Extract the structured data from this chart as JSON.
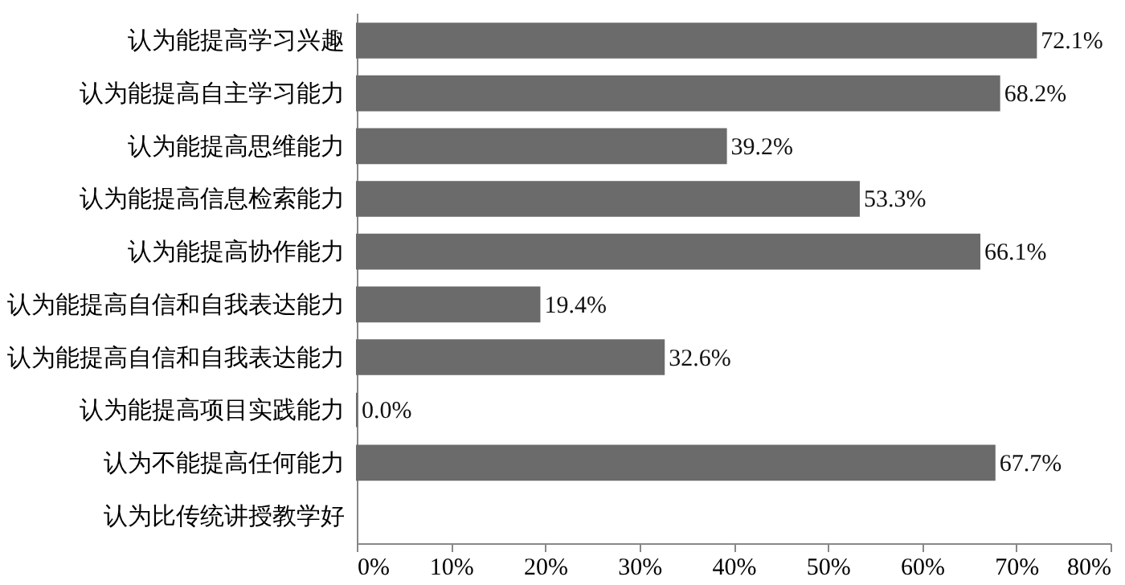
{
  "chart_data": {
    "type": "bar",
    "orientation": "horizontal",
    "categories": [
      "认为能提高学习兴趣",
      "认为能提高自主学习能力",
      "认为能提高思维能力",
      "认为能提高信息检索能力",
      "认为能提高协作能力",
      "认为能提高自信和自我表达能力",
      "认为能提高自信和自我表达能力",
      "认为能提高项目实践能力",
      "认为不能提高任何能力",
      "认为比传统讲授教学好"
    ],
    "values": [
      72.1,
      68.2,
      39.2,
      53.3,
      66.1,
      19.4,
      32.6,
      0.0,
      67.7,
      null
    ],
    "value_labels": [
      "72.1%",
      "68.2%",
      "39.2%",
      "53.3%",
      "66.1%",
      "19.4%",
      "32.6%",
      "0.0%",
      "67.7%",
      null
    ],
    "color": "#6b6b6b",
    "xlim": [
      0,
      80
    ],
    "xticks": [
      {
        "value": 0,
        "label": "0%"
      },
      {
        "value": 10,
        "label": "10%"
      },
      {
        "value": 20,
        "label": "20%"
      },
      {
        "value": 30,
        "label": "30%"
      },
      {
        "value": 40,
        "label": "40%"
      },
      {
        "value": 50,
        "label": "50%"
      },
      {
        "value": 60,
        "label": "60%"
      },
      {
        "value": 70,
        "label": "70%"
      },
      {
        "value": 80,
        "label": "80%"
      }
    ]
  }
}
